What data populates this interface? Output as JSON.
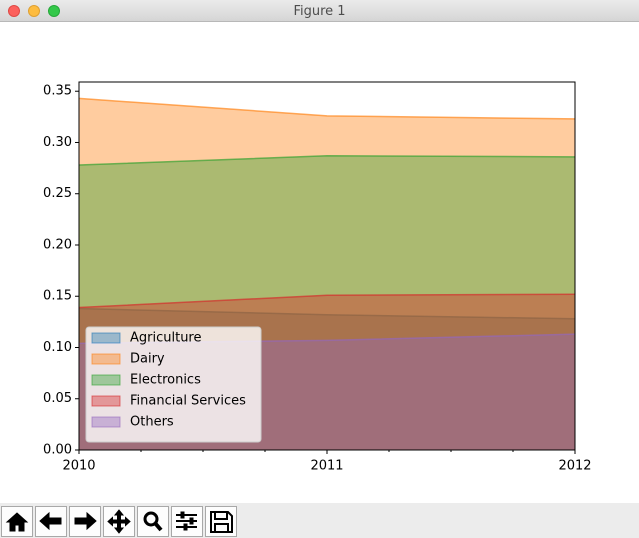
{
  "window": {
    "title": "Figure 1"
  },
  "chart_data": {
    "type": "area",
    "stacked": false,
    "alpha": 0.4,
    "x": [
      2010,
      2011,
      2012
    ],
    "xlim": [
      2010,
      2012
    ],
    "xticks": [
      2010,
      2011,
      2012
    ],
    "xminorticks": [
      2010.25,
      2010.5,
      2010.75,
      2011.25,
      2011.5,
      2011.75
    ],
    "ylim": [
      0,
      0.359
    ],
    "yticks": [
      {
        "value": 0,
        "label": "0.00"
      },
      0.05,
      {
        "value": 0.1,
        "label": "0.10"
      },
      0.15,
      {
        "value": 0.2,
        "label": "0.20"
      },
      0.25,
      {
        "value": 0.3,
        "label": "0.30"
      },
      0.35
    ],
    "grid": false,
    "legend": "lower left",
    "series": [
      {
        "name": "Agriculture",
        "color": "#1f77b4",
        "values": [
          0.138,
          0.132,
          0.128
        ]
      },
      {
        "name": "Dairy",
        "color": "#ff7f0e",
        "values": [
          0.343,
          0.326,
          0.323
        ]
      },
      {
        "name": "Electronics",
        "color": "#2ca02c",
        "values": [
          0.278,
          0.287,
          0.286
        ]
      },
      {
        "name": "Financial Services",
        "color": "#d62728",
        "values": [
          0.139,
          0.151,
          0.152
        ]
      },
      {
        "name": "Others",
        "color": "#9467bd",
        "values": [
          0.104,
          0.107,
          0.113
        ]
      }
    ]
  }
}
